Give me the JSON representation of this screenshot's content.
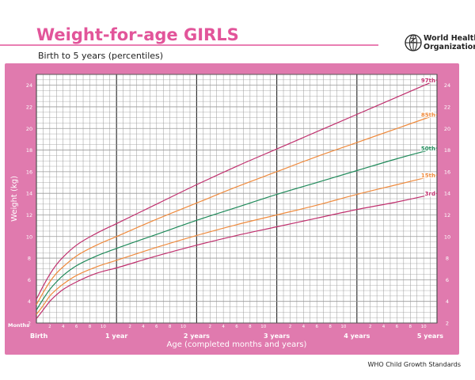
{
  "header": {
    "title": "Weight-for-age GIRLS",
    "subtitle": "Birth to 5 years (percentiles)",
    "org_name_line1": "World Health",
    "org_name_line2": "Organization",
    "footer": "WHO Child Growth Standards"
  },
  "colors": {
    "frame": "#e07aae",
    "title": "#e2559a",
    "grid": "#9a9a9a",
    "major_grid": "#333333"
  },
  "chart_data": {
    "type": "line",
    "title": "Weight-for-age GIRLS",
    "subtitle": "Birth to 5 years (percentiles)",
    "xlabel": "Age (completed months and years)",
    "ylabel": "Weight (kg)",
    "x_unit_label": "Months",
    "xlim": [
      0,
      60
    ],
    "ylim": [
      2,
      25
    ],
    "y_ticks": [
      2,
      4,
      6,
      8,
      10,
      12,
      14,
      16,
      18,
      20,
      22,
      24
    ],
    "month_ticks": [
      2,
      4,
      6,
      8,
      10,
      2,
      4,
      6,
      8,
      10,
      2,
      4,
      6,
      8,
      10,
      2,
      4,
      6,
      8,
      10,
      2,
      4,
      6,
      8,
      10
    ],
    "year_labels": [
      {
        "x": 0,
        "label": "Birth"
      },
      {
        "x": 12,
        "label": "1 year"
      },
      {
        "x": 24,
        "label": "2 years"
      },
      {
        "x": 36,
        "label": "3 years"
      },
      {
        "x": 48,
        "label": "4 years"
      },
      {
        "x": 60,
        "label": "5 years"
      }
    ],
    "grid": true,
    "x": [
      0,
      1,
      2,
      3,
      4,
      6,
      9,
      12,
      18,
      24,
      30,
      36,
      42,
      48,
      54,
      60
    ],
    "series": [
      {
        "name": "3rd",
        "color": "#c0306e",
        "values": [
          2.4,
          3.2,
          4.0,
          4.6,
          5.1,
          5.8,
          6.6,
          7.1,
          8.2,
          9.2,
          10.1,
          10.9,
          11.7,
          12.5,
          13.2,
          14.0
        ]
      },
      {
        "name": "15th",
        "color": "#ef8b3e",
        "values": [
          2.8,
          3.6,
          4.5,
          5.1,
          5.6,
          6.4,
          7.2,
          7.8,
          9.0,
          10.1,
          11.1,
          12.0,
          12.9,
          13.9,
          14.8,
          15.7
        ]
      },
      {
        "name": "50th",
        "color": "#1f8a5a",
        "values": [
          3.2,
          4.2,
          5.1,
          5.8,
          6.4,
          7.3,
          8.2,
          8.9,
          10.2,
          11.5,
          12.7,
          13.9,
          15.0,
          16.1,
          17.2,
          18.2
        ]
      },
      {
        "name": "85th",
        "color": "#ef8b3e",
        "values": [
          3.7,
          4.8,
          5.8,
          6.6,
          7.2,
          8.2,
          9.2,
          10.0,
          11.6,
          13.1,
          14.6,
          16.0,
          17.4,
          18.7,
          20.0,
          21.3
        ]
      },
      {
        "name": "97th",
        "color": "#c0306e",
        "values": [
          4.2,
          5.4,
          6.5,
          7.4,
          8.1,
          9.2,
          10.3,
          11.2,
          13.0,
          14.8,
          16.5,
          18.1,
          19.7,
          21.3,
          22.9,
          24.5
        ]
      }
    ]
  }
}
